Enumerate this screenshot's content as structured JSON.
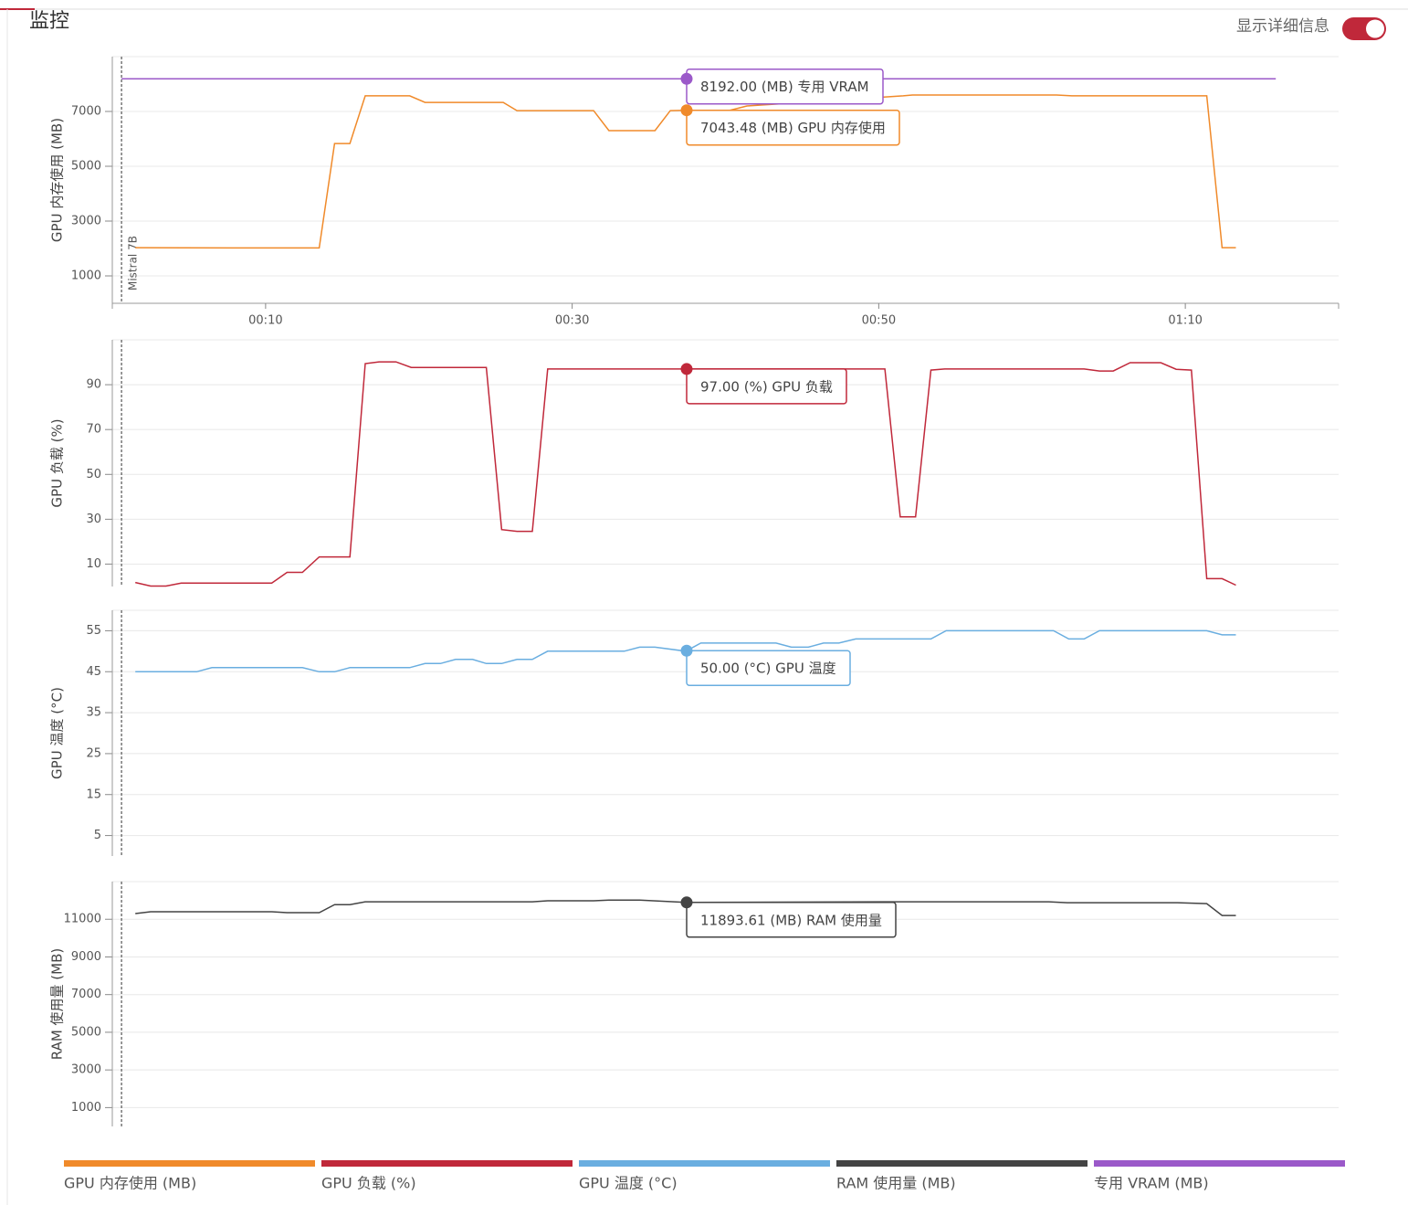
{
  "header": {
    "title": "监控",
    "toggle_label": "显示详细信息"
  },
  "chart_data": [
    {
      "type": "line",
      "ylabel": "GPU 内存使用 (MB)",
      "xlim": [
        0,
        80
      ],
      "xticks": [
        {
          "value": 10,
          "label": "00:10"
        },
        {
          "value": 30,
          "label": "00:30"
        },
        {
          "value": 50,
          "label": "00:50"
        },
        {
          "value": 70,
          "label": "01:10"
        }
      ],
      "ylim": [
        0,
        9000
      ],
      "yticks": [
        1000,
        3000,
        5000,
        7000
      ],
      "grid": true,
      "annotations": [
        {
          "x": 0.6,
          "text": "Mistral 7B"
        }
      ],
      "series": [
        {
          "name": "GPU 内存使用 (MB)",
          "color": "#f08a2a",
          "x": [
            1.5,
            9.5,
            13.5,
            14.5,
            15.5,
            16.5,
            19.4,
            20.4,
            25.5,
            26.4,
            31.4,
            32.4,
            35.4,
            36.4,
            37.4,
            40.2,
            41.4,
            51.6,
            52.2,
            61.6,
            62.6,
            71.4,
            72.4,
            73.3
          ],
          "values": [
            2030,
            2020,
            2020,
            5830,
            5830,
            7570,
            7570,
            7330,
            7330,
            7030,
            7030,
            6300,
            6300,
            7030,
            7043.48,
            7030,
            7200,
            7570,
            7600,
            7600,
            7570,
            7570,
            2030,
            2030
          ],
          "tooltip": "7043.48 (MB) GPU 内存使用"
        },
        {
          "name": "专用 VRAM (MB)",
          "color": "#9b59c9",
          "x": [
            0.6,
            75.9
          ],
          "values": [
            8192,
            8192
          ],
          "tooltip": "8192.00 (MB) 专用 VRAM"
        }
      ]
    },
    {
      "type": "line",
      "ylabel": "GPU 负载 (%)",
      "ylim": [
        0,
        110
      ],
      "yticks": [
        10,
        30,
        50,
        70,
        90
      ],
      "grid": true,
      "series": [
        {
          "name": "GPU 负载 (%)",
          "color": "#c0283a",
          "x": [
            1.5,
            2.5,
            3.5,
            4.5,
            10.4,
            11.4,
            12.4,
            13.5,
            15.5,
            16.5,
            17.4,
            18.5,
            19.5,
            24.4,
            25.4,
            26.4,
            27.4,
            28.4,
            37.4,
            50.4,
            51.4,
            52.4,
            53.4,
            54.3,
            63.4,
            64.4,
            65.3,
            66.4,
            68.4,
            69.4,
            70.4,
            71.4,
            72.4,
            73.3
          ],
          "values": [
            1.8,
            0.2,
            0.2,
            1.5,
            1.5,
            6.3,
            6.3,
            13.2,
            13.2,
            99.4,
            100.2,
            100.2,
            97.7,
            97.7,
            25.4,
            24.6,
            24.6,
            97,
            97,
            97,
            31.1,
            31.1,
            96.5,
            97,
            97,
            96.1,
            96.1,
            99.8,
            99.8,
            96.9,
            96.5,
            3.5,
            3.5,
            0.6
          ],
          "tooltip": "97.00 (%) GPU 负载"
        }
      ]
    },
    {
      "type": "line",
      "ylabel": "GPU 温度 (°C)",
      "ylim": [
        0,
        60
      ],
      "yticks": [
        5,
        15,
        25,
        35,
        45,
        55
      ],
      "grid": true,
      "series": [
        {
          "name": "GPU 温度 (°C)",
          "color": "#6aaee0",
          "x": [
            1.5,
            5.5,
            6.5,
            12.4,
            13.5,
            14.5,
            15.5,
            19.4,
            20.4,
            21.4,
            22.4,
            23.5,
            24.4,
            25.4,
            26.4,
            27.4,
            28.4,
            33.4,
            34.4,
            35.4,
            37.4,
            38.4,
            43.3,
            44.3,
            45.4,
            46.4,
            47.4,
            48.5,
            53.4,
            54.4,
            61.4,
            62.4,
            63.4,
            64.4,
            71.4,
            72.4,
            73.3
          ],
          "values": [
            45,
            45,
            46,
            46,
            45,
            45,
            46,
            46,
            47,
            47,
            48,
            48,
            47,
            47,
            48,
            48,
            50,
            50,
            51,
            51,
            50,
            52,
            52,
            51,
            51,
            52,
            52,
            53,
            53,
            55,
            55,
            53,
            53,
            55,
            55,
            54,
            54
          ],
          "tooltip": "50.00 (°C) GPU 温度"
        }
      ]
    },
    {
      "type": "line",
      "ylabel": "RAM 使用量 (MB)",
      "ylim": [
        0,
        13000
      ],
      "yticks": [
        1000,
        3000,
        5000,
        7000,
        9000,
        11000
      ],
      "grid": true,
      "series": [
        {
          "name": "RAM 使用量 (MB)",
          "color": "#444444",
          "x": [
            1.5,
            2.5,
            10.4,
            11.4,
            13.5,
            14.5,
            15.5,
            16.5,
            27.4,
            28.4,
            31.4,
            32.4,
            34.4,
            37.4,
            50.4,
            61.1,
            62.3,
            69.5,
            71.4,
            72.4,
            73.3
          ],
          "values": [
            11300,
            11400,
            11400,
            11350,
            11350,
            11780,
            11780,
            11930,
            11930,
            11980,
            11980,
            12020,
            12020,
            11893.61,
            11930,
            11930,
            11880,
            11880,
            11830,
            11200,
            11200
          ],
          "tooltip": "11893.61 (MB) RAM 使用量"
        }
      ]
    }
  ]
}
